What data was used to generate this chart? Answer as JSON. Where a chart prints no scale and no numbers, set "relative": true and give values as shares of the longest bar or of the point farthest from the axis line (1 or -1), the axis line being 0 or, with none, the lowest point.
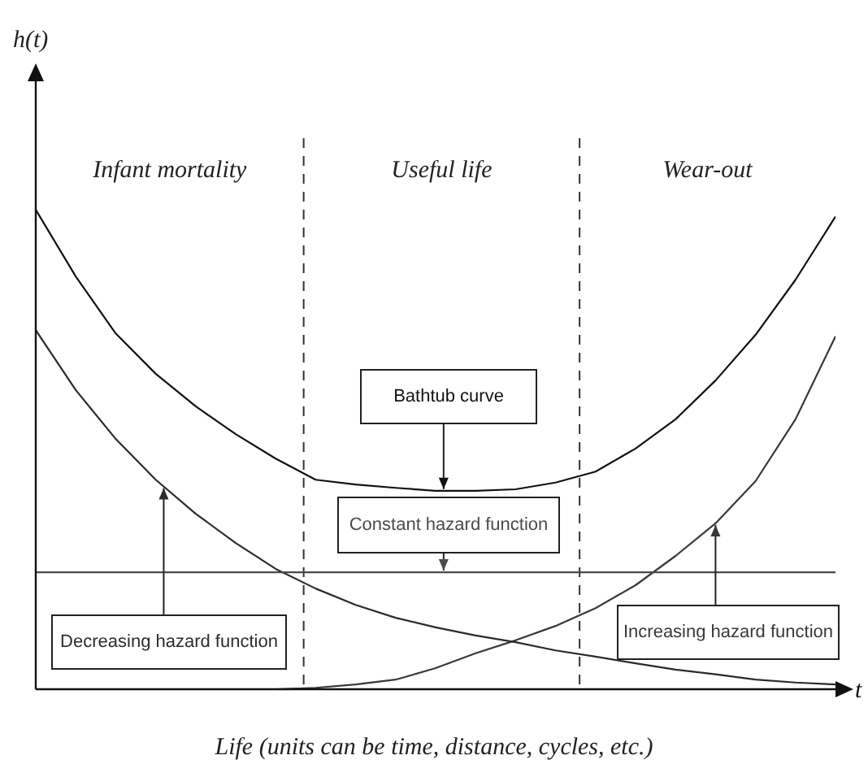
{
  "chart_data": {
    "type": "line",
    "relative": true,
    "xlabel": "t",
    "legend": false,
    "grid": false,
    "marker": "none",
    "line_style": "solid",
    "categories": [
      null,
      null,
      null,
      null,
      null,
      null,
      null,
      null,
      null,
      null,
      null,
      null,
      null,
      null,
      null,
      null,
      null,
      null,
      null,
      null,
      null
    ],
    "series": [
      {
        "name": "Bathtub curve",
        "color": "#111111",
        "values": [
          1,
          0.861,
          0.742,
          0.658,
          0.59,
          0.532,
          0.481,
          0.437,
          0.427,
          0.42,
          0.414,
          0.414,
          0.417,
          0.431,
          0.454,
          0.502,
          0.563,
          0.644,
          0.739,
          0.854,
          0.986
        ]
      },
      {
        "name": "Constant hazard function",
        "color": "#4a4a4a",
        "values": [
          0.244,
          0.244,
          0.244,
          0.244,
          0.244,
          0.244,
          0.244,
          0.244,
          0.244,
          0.244,
          0.244,
          0.244,
          0.244,
          0.244,
          0.244,
          0.244,
          0.244,
          0.244,
          0.244,
          0.244,
          0.244
        ]
      },
      {
        "name": "Decreasing hazard function",
        "color": "#2b2b2b",
        "values": [
          0.749,
          0.624,
          0.522,
          0.437,
          0.366,
          0.305,
          0.251,
          0.21,
          0.176,
          0.149,
          0.129,
          0.112,
          0.098,
          0.081,
          0.068,
          0.054,
          0.041,
          0.031,
          0.02,
          0.014,
          0.01
        ]
      },
      {
        "name": "Increasing hazard function",
        "color": "#383838",
        "values": [
          0,
          0,
          0,
          0,
          0,
          0,
          0,
          0.003,
          0.01,
          0.02,
          0.044,
          0.075,
          0.102,
          0.132,
          0.169,
          0.217,
          0.278,
          0.346,
          0.434,
          0.563,
          0.736
        ]
      }
    ],
    "ref_lines": [
      {
        "axis": "x",
        "line_style": "dashed"
      },
      {
        "axis": "x",
        "line_style": "dashed"
      }
    ],
    "annotations": [
      "Infant mortality",
      "Useful life",
      "Wear-out",
      "Life (units can be time, distance, cycles, etc.)",
      "h(t)"
    ]
  }
}
